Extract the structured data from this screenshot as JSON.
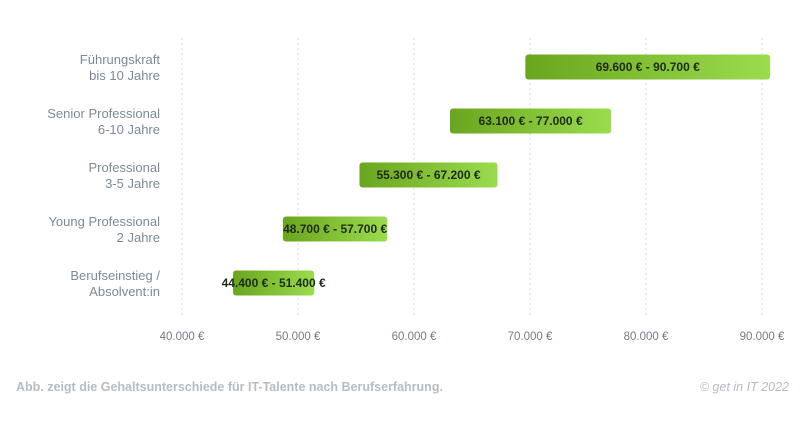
{
  "chart_data": {
    "type": "bar",
    "orientation": "horizontal-range",
    "categories": [
      [
        "Führungskraft",
        "bis 10 Jahre"
      ],
      [
        "Senior Professional",
        "6-10 Jahre"
      ],
      [
        "Professional",
        "3-5 Jahre"
      ],
      [
        "Young Professional",
        "2 Jahre"
      ],
      [
        "Berufseinstieg /",
        "Absolvent:in"
      ]
    ],
    "ranges": [
      {
        "low": 69600,
        "high": 90700,
        "label": "69.600 €  -  90.700 €"
      },
      {
        "low": 63100,
        "high": 77000,
        "label": "63.100 €  -  77.000 €"
      },
      {
        "low": 55300,
        "high": 67200,
        "label": "55.300 €  -  67.200 €"
      },
      {
        "low": 48700,
        "high": 57700,
        "label": "48.700 €  -  57.700 €"
      },
      {
        "low": 44400,
        "high": 51400,
        "label": "44.400 €  -  51.400 €"
      }
    ],
    "xlim": [
      40000,
      90000
    ],
    "xticks": [
      40000,
      50000,
      60000,
      70000,
      80000,
      90000
    ],
    "xtick_labels": [
      "40.000 €",
      "50.000 €",
      "60.000 €",
      "70.000 €",
      "80.000 €",
      "90.000 €"
    ],
    "grid": "vertical-dotted",
    "colors": {
      "bar_start": "#6aa51e",
      "bar_end": "#9bdc4e",
      "grid": "#d6dbe0",
      "label": "#7c8a97"
    }
  },
  "caption": "Abb. zeigt die Gehaltsunterschiede für IT-Talente nach Berufserfahrung.",
  "credit": "© get in IT 2022"
}
